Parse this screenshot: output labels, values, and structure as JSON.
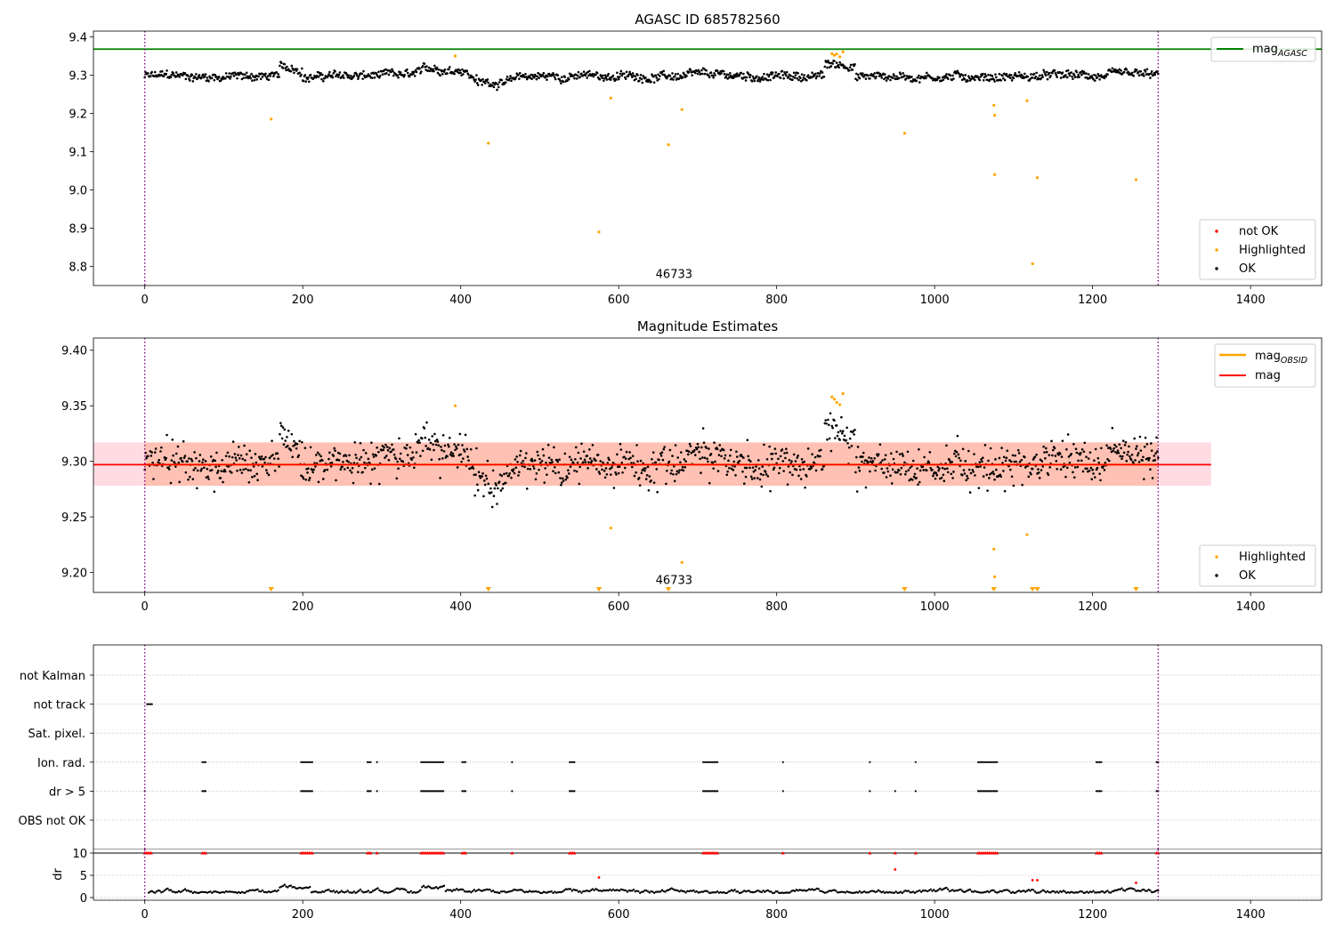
{
  "chart_data": [
    {
      "type": "scatter",
      "id": "p1",
      "title": "AGASC ID 685782560",
      "xlim": [
        -65,
        1490
      ],
      "ylim": [
        8.75,
        9.415
      ],
      "xticks": [
        0,
        200,
        400,
        600,
        800,
        1000,
        1200,
        1400
      ],
      "yticks": [
        8.8,
        8.9,
        9.0,
        9.1,
        9.2,
        9.3,
        9.4
      ],
      "ytick_decimals": 1,
      "obsid_label": "46733",
      "obsid_label_xy": [
        640,
        8.765
      ],
      "vlines": [
        0,
        1283
      ],
      "hline": {
        "y": 9.368,
        "color": "#008000"
      },
      "legends": [
        {
          "position": "top-right",
          "items": [
            {
              "kind": "line",
              "color": "#008000",
              "label": "mag",
              "sub": "AGASC"
            }
          ]
        },
        {
          "position": "bottom-right",
          "items": [
            {
              "kind": "dot",
              "color": "#ff0000",
              "label": "not OK"
            },
            {
              "kind": "dot",
              "color": "#ffa500",
              "label": "Highlighted"
            },
            {
              "kind": "dot",
              "color": "#000000",
              "label": "OK"
            }
          ]
        }
      ],
      "highlighted": [
        [
          160,
          9.185
        ],
        [
          393,
          9.35
        ],
        [
          435,
          9.122
        ],
        [
          575,
          8.89
        ],
        [
          590,
          9.24
        ],
        [
          663,
          9.118
        ],
        [
          680,
          9.21
        ],
        [
          870,
          9.356
        ],
        [
          873,
          9.352
        ],
        [
          876,
          9.355
        ],
        [
          880,
          9.348
        ],
        [
          884,
          9.361
        ],
        [
          962,
          9.148
        ],
        [
          1075,
          9.221
        ],
        [
          1076,
          9.195
        ],
        [
          1076,
          9.04
        ],
        [
          1117,
          9.233
        ],
        [
          1124,
          8.807
        ],
        [
          1130,
          9.032
        ],
        [
          1255,
          9.027
        ]
      ]
    },
    {
      "type": "scatter",
      "id": "p2",
      "title": "Magnitude Estimates",
      "xlim": [
        -65,
        1490
      ],
      "ylim": [
        9.182,
        9.411
      ],
      "xticks": [
        0,
        200,
        400,
        600,
        800,
        1000,
        1200,
        1400
      ],
      "yticks": [
        9.2,
        9.25,
        9.3,
        9.35,
        9.4
      ],
      "ytick_decimals": 2,
      "obsid_label": "46733",
      "obsid_label_xy": [
        640,
        9.188
      ],
      "vlines": [
        0,
        1283
      ],
      "mag_line": {
        "y": 9.297,
        "x": [
          -65,
          1350
        ],
        "color": "#ff0000"
      },
      "mag_band": {
        "y0": 9.278,
        "y1": 9.317,
        "x": [
          -65,
          1350
        ],
        "color": "#ffc0cb"
      },
      "obsid_band": {
        "y0": 9.278,
        "y1": 9.317,
        "x": [
          0,
          1283
        ],
        "color": "#ffa07a"
      },
      "obsid_line": {
        "y": 9.297,
        "x": [
          0,
          1283
        ],
        "color": "#ffa500"
      },
      "legends": [
        {
          "position": "top-right",
          "items": [
            {
              "kind": "line",
              "color": "#ffa500",
              "label": "mag",
              "sub": "OBSID"
            },
            {
              "kind": "line",
              "color": "#ff0000",
              "label": "mag"
            }
          ]
        },
        {
          "position": "bottom-right",
          "items": [
            {
              "kind": "dot",
              "color": "#ffa500",
              "label": "Highlighted"
            },
            {
              "kind": "dot",
              "color": "#000000",
              "label": "OK"
            }
          ]
        }
      ],
      "highlighted": [
        [
          393,
          9.35
        ],
        [
          590,
          9.24
        ],
        [
          680,
          9.209
        ],
        [
          870,
          9.358
        ],
        [
          873,
          9.356
        ],
        [
          876,
          9.353
        ],
        [
          880,
          9.351
        ],
        [
          884,
          9.361
        ],
        [
          1075,
          9.221
        ],
        [
          1076,
          9.196
        ],
        [
          1117,
          9.234
        ]
      ],
      "offscale_markers": [
        160,
        435,
        575,
        663,
        962,
        1075,
        1124,
        1130,
        1255
      ]
    },
    {
      "type": "scatter",
      "id": "p3",
      "xlim": [
        -65,
        1490
      ],
      "categories": [
        "not Kalman",
        "not track",
        "Sat. pixel.",
        "Ion. rad.",
        "dr > 5",
        "OBS not OK"
      ],
      "vlines": [
        0,
        1283
      ],
      "flags": {
        "not track": [
          [
            3,
            10
          ]
        ],
        "Ion. rad.": [
          [
            73,
            78
          ],
          [
            198,
            212
          ],
          [
            282,
            287
          ],
          [
            294,
            294
          ],
          [
            350,
            378
          ],
          [
            402,
            407
          ],
          [
            465,
            465
          ],
          [
            538,
            545
          ],
          [
            707,
            725
          ],
          [
            808,
            808
          ],
          [
            918,
            918
          ],
          [
            976,
            976
          ],
          [
            1055,
            1080
          ],
          [
            1205,
            1212
          ],
          [
            1281,
            1283
          ]
        ],
        "dr > 5": [
          [
            0,
            0
          ],
          [
            73,
            78
          ],
          [
            198,
            212
          ],
          [
            282,
            287
          ],
          [
            294,
            294
          ],
          [
            350,
            378
          ],
          [
            402,
            407
          ],
          [
            465,
            465
          ],
          [
            538,
            545
          ],
          [
            707,
            725
          ],
          [
            808,
            808
          ],
          [
            918,
            918
          ],
          [
            950,
            950
          ],
          [
            976,
            976
          ],
          [
            1055,
            1080
          ],
          [
            1205,
            1212
          ],
          [
            1281,
            1283
          ]
        ]
      }
    },
    {
      "type": "scatter",
      "id": "p4",
      "ylabel": "dr",
      "xlim": [
        -65,
        1490
      ],
      "ylim": [
        -0.6,
        10.8
      ],
      "xticks": [
        0,
        200,
        400,
        600,
        800,
        1000,
        1200,
        1400
      ],
      "yticks": [
        0,
        5,
        10
      ],
      "vlines": [
        0,
        1283
      ],
      "clipped_at": 10,
      "red_points": [
        [
          575,
          4.5
        ],
        [
          950,
          6.3
        ],
        [
          1124,
          3.9
        ],
        [
          1130,
          3.9
        ],
        [
          1255,
          3.3
        ]
      ]
    }
  ]
}
